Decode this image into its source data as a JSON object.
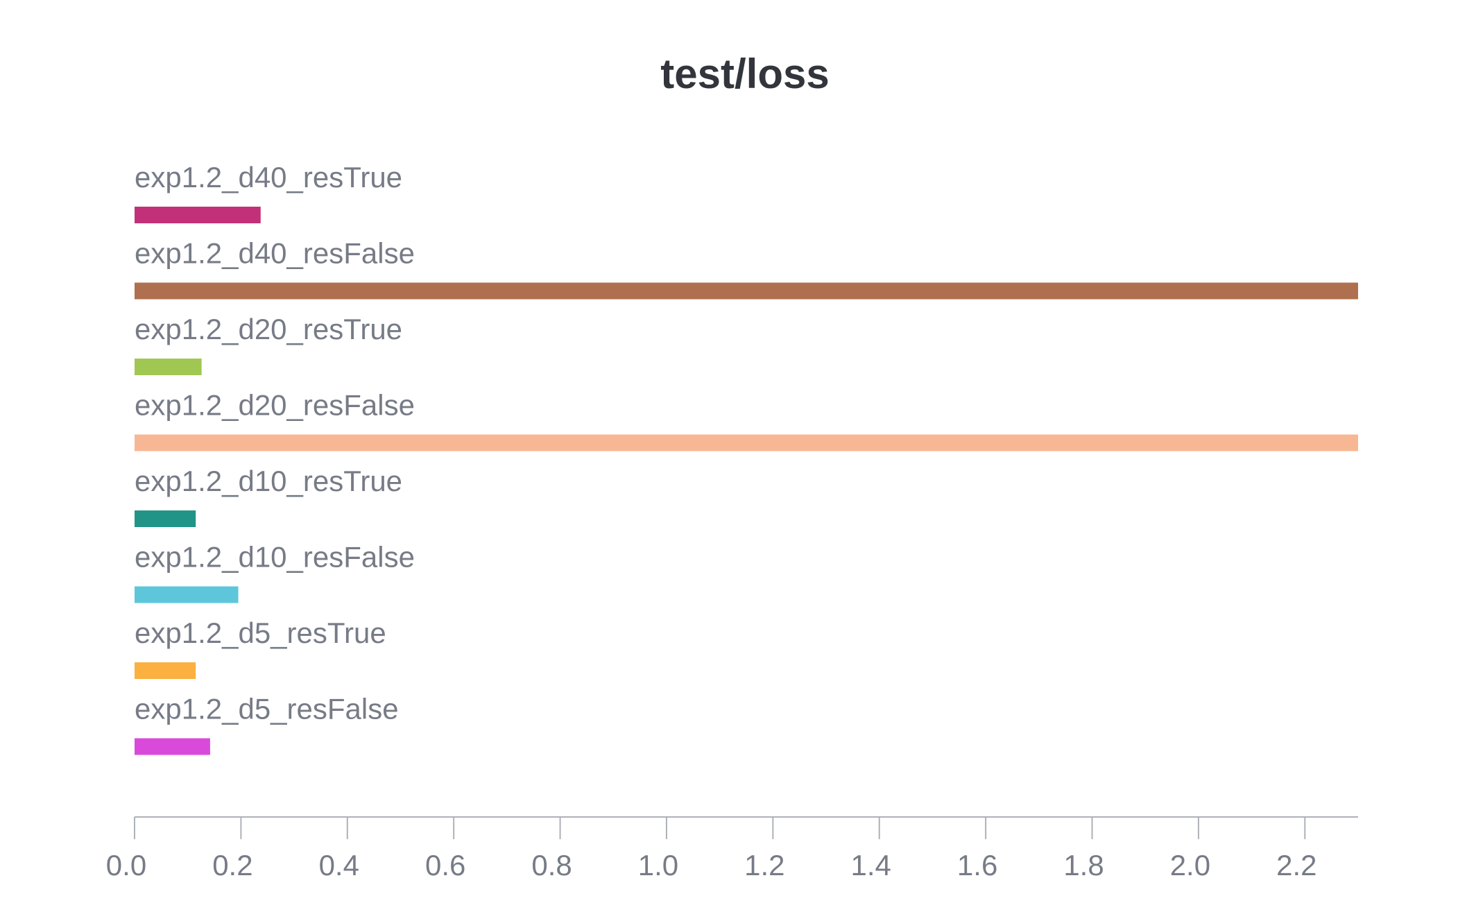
{
  "chart_data": {
    "type": "bar",
    "orientation": "horizontal",
    "title": "test/loss",
    "xlabel": "",
    "ylabel": "",
    "xlim": [
      0,
      2.3
    ],
    "grid": false,
    "legend": "none",
    "categories": [
      "exp1.2_d40_resTrue",
      "exp1.2_d40_resFalse",
      "exp1.2_d20_resTrue",
      "exp1.2_d20_resFalse",
      "exp1.2_d10_resTrue",
      "exp1.2_d10_resFalse",
      "exp1.2_d5_resTrue",
      "exp1.2_d5_resFalse"
    ],
    "values": [
      0.237,
      2.3,
      0.126,
      2.3,
      0.115,
      0.195,
      0.115,
      0.142
    ],
    "colors": [
      "#c2307a",
      "#ae704f",
      "#a0c752",
      "#f8b794",
      "#229487",
      "#5ec6da",
      "#fcb040",
      "#d94adb"
    ],
    "xticks": [
      "0.0",
      "0.2",
      "0.4",
      "0.6",
      "0.8",
      "1.0",
      "1.2",
      "1.4",
      "1.6",
      "1.8",
      "2.0",
      "2.2"
    ],
    "xtick_values": [
      0,
      0.2,
      0.4,
      0.6,
      0.8,
      1.0,
      1.2,
      1.4,
      1.6,
      1.8,
      2.0,
      2.2
    ],
    "axis_color": "#aeb1b8",
    "text_color": "#767b86",
    "title_color": "#32363c"
  }
}
